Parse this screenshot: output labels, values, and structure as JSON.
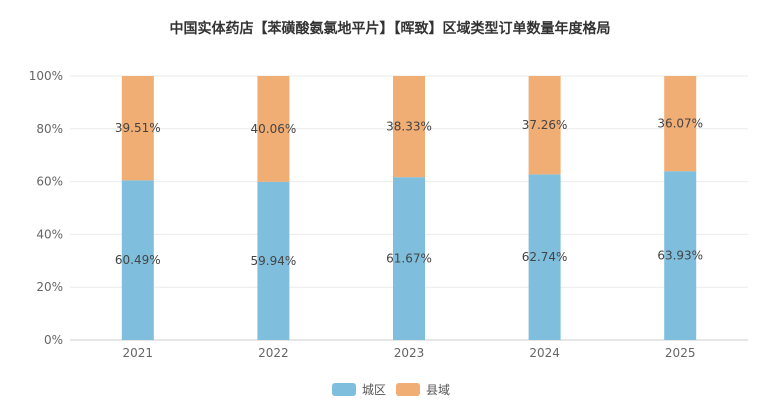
{
  "chart_data": {
    "type": "bar",
    "stacked": true,
    "percent": true,
    "title": "中国实体药店【苯磺酸氨氯地平片】【晖致】区域类型订单数量年度格局",
    "categories": [
      "2021",
      "2022",
      "2023",
      "2024",
      "2025"
    ],
    "series": [
      {
        "name": "城区",
        "values": [
          60.49,
          59.94,
          61.67,
          62.74,
          63.93
        ],
        "labels": [
          "60.49%",
          "59.94%",
          "61.67%",
          "62.74%",
          "63.93%"
        ],
        "color": "#7fbfdd"
      },
      {
        "name": "县域",
        "values": [
          39.51,
          40.06,
          38.33,
          37.26,
          36.07
        ],
        "labels": [
          "39.51%",
          "40.06%",
          "38.33%",
          "37.26%",
          "36.07%"
        ],
        "color": "#f0ad74"
      }
    ],
    "ylim": [
      0,
      100
    ],
    "yticks": [
      "0%",
      "20%",
      "40%",
      "60%",
      "80%",
      "100%"
    ],
    "grid": true,
    "legend_position": "bottom-center"
  }
}
